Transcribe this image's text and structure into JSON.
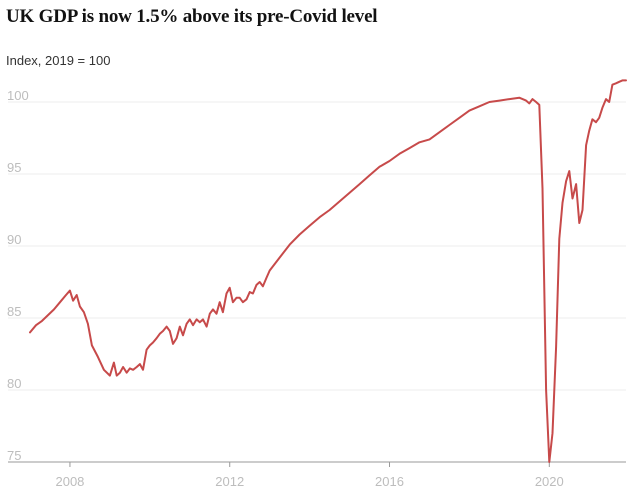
{
  "chart_data": {
    "type": "line",
    "title": "UK GDP is now 1.5% above its pre-Covid level",
    "subtitle": "Index, 2019 = 100",
    "xlabel": "",
    "ylabel": "",
    "xlim": [
      2007.0,
      2021.92
    ],
    "ylim": [
      75,
      100
    ],
    "x_ticks": [
      2008,
      2012,
      2016,
      2020
    ],
    "y_ticks": [
      75,
      80,
      85,
      90,
      95,
      100
    ],
    "grid": true,
    "line_color": "#c74a4a",
    "grid_color": "#ededed",
    "axis_color": "#999999",
    "series": [
      {
        "x": [
          2007.0,
          2007.15,
          2007.3,
          2007.45,
          2007.6,
          2007.75,
          2007.9,
          2008.0,
          2008.08,
          2008.17,
          2008.25,
          2008.35,
          2008.45,
          2008.55,
          2008.7,
          2008.85,
          2009.0,
          2009.1,
          2009.17,
          2009.25,
          2009.33,
          2009.42,
          2009.5,
          2009.58,
          2009.67,
          2009.75,
          2009.83,
          2009.92,
          2010.0,
          2010.08,
          2010.17,
          2010.25,
          2010.33,
          2010.42,
          2010.5,
          2010.58,
          2010.67,
          2010.75,
          2010.83,
          2010.92,
          2011.0,
          2011.08,
          2011.17,
          2011.25,
          2011.33,
          2011.42,
          2011.5,
          2011.58,
          2011.67,
          2011.75,
          2011.83,
          2011.92,
          2012.0,
          2012.08,
          2012.17,
          2012.25,
          2012.33,
          2012.42,
          2012.5,
          2012.58,
          2012.67,
          2012.75,
          2012.83,
          2012.92,
          2013.0,
          2013.25,
          2013.5,
          2013.75,
          2014.0,
          2014.25,
          2014.5,
          2014.75,
          2015.0,
          2015.25,
          2015.5,
          2015.75,
          2016.0,
          2016.25,
          2016.5,
          2016.75,
          2017.0,
          2017.25,
          2017.5,
          2017.75,
          2018.0,
          2018.25,
          2018.5,
          2018.75,
          2019.0,
          2019.25,
          2019.42,
          2019.5,
          2019.58,
          2019.67,
          2019.75,
          2019.83,
          2019.92,
          2020.0,
          2020.08,
          2020.17,
          2020.25,
          2020.33,
          2020.42,
          2020.5,
          2020.58,
          2020.67,
          2020.75,
          2020.83,
          2020.92,
          2021.0,
          2021.08,
          2021.17,
          2021.25,
          2021.33,
          2021.42,
          2021.5,
          2021.58,
          2021.67,
          2021.75,
          2021.83,
          2021.92
        ],
        "y": [
          84.0,
          84.5,
          84.8,
          85.2,
          85.6,
          86.1,
          86.6,
          86.9,
          86.2,
          86.6,
          85.8,
          85.4,
          84.6,
          83.1,
          82.3,
          81.4,
          81.0,
          81.9,
          81.0,
          81.2,
          81.6,
          81.2,
          81.5,
          81.4,
          81.6,
          81.8,
          81.4,
          82.8,
          83.1,
          83.3,
          83.6,
          83.9,
          84.1,
          84.4,
          84.1,
          83.2,
          83.6,
          84.4,
          83.8,
          84.6,
          84.9,
          84.5,
          84.9,
          84.7,
          84.9,
          84.4,
          85.3,
          85.6,
          85.3,
          86.1,
          85.4,
          86.7,
          87.1,
          86.1,
          86.4,
          86.4,
          86.1,
          86.3,
          86.8,
          86.7,
          87.3,
          87.5,
          87.2,
          87.8,
          88.3,
          89.2,
          90.1,
          90.8,
          91.4,
          92.0,
          92.5,
          93.1,
          93.7,
          94.3,
          94.9,
          95.5,
          95.9,
          96.4,
          96.8,
          97.2,
          97.4,
          97.9,
          98.4,
          98.9,
          99.4,
          99.7,
          100.0,
          100.1,
          100.2,
          100.3,
          100.1,
          99.9,
          100.2,
          100.0,
          99.8,
          94.0,
          80.0,
          75.0,
          77.0,
          83.0,
          90.5,
          93.0,
          94.5,
          95.2,
          93.3,
          94.3,
          91.6,
          92.5,
          97.0,
          98.0,
          98.8,
          98.6,
          98.9,
          99.6,
          100.2,
          100.0,
          101.2,
          101.3,
          101.4,
          101.5,
          101.5
        ]
      }
    ]
  }
}
